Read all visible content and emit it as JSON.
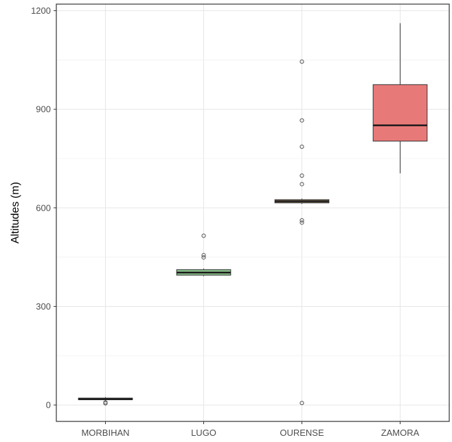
{
  "chart_data": {
    "type": "box",
    "title": "",
    "xlabel": "",
    "ylabel": "Altitudes (m)",
    "ylim": [
      -50,
      1220
    ],
    "y_ticks": [
      0,
      300,
      600,
      900,
      1200
    ],
    "grid": true,
    "categories": [
      "MORBIHAN",
      "LUGO",
      "OURENSE",
      "ZAMORA"
    ],
    "boxes": [
      {
        "category": "MORBIHAN",
        "q1": 16,
        "median": 18,
        "q3": 21,
        "whisker_low": 12,
        "whisker_high": 24,
        "outliers": [
          5,
          8
        ],
        "fill": "#3a3a3a"
      },
      {
        "category": "LUGO",
        "q1": 395,
        "median": 403,
        "q3": 412,
        "whisker_low": 392,
        "whisker_high": 415,
        "outliers": [
          449,
          456,
          515
        ],
        "fill": "#88c08a"
      },
      {
        "category": "OURENSE",
        "q1": 615,
        "median": 620,
        "q3": 625,
        "whisker_low": 612,
        "whisker_high": 628,
        "outliers": [
          6,
          555,
          562,
          672,
          698,
          786,
          866,
          1045
        ],
        "fill": "#a08868"
      },
      {
        "category": "ZAMORA",
        "q1": 803,
        "median": 851,
        "q3": 975,
        "whisker_low": 705,
        "whisker_high": 1162,
        "outliers": [],
        "fill": "#e77a78"
      }
    ]
  }
}
